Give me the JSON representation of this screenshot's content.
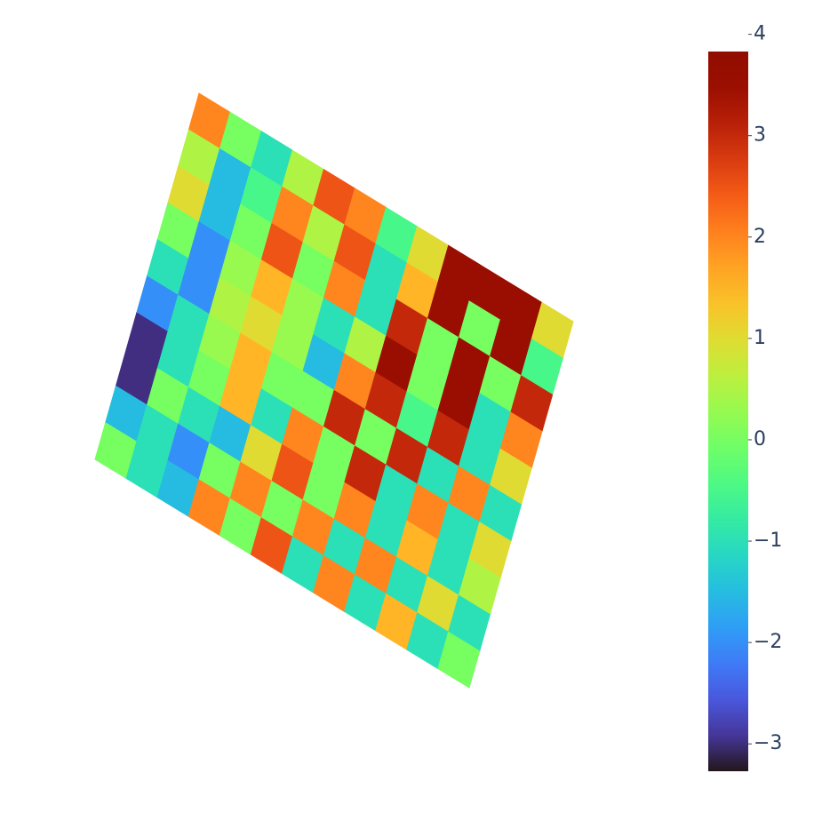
{
  "chart_data": {
    "type": "heatmap",
    "colorscale": "Turbo",
    "zlim": [
      -3.27,
      3.83
    ],
    "zticks": [
      4,
      3,
      2,
      1,
      0,
      {
        "value": -1,
        "label": "−1"
      },
      {
        "value": -2,
        "label": "−2"
      },
      {
        "value": -3,
        "label": "−3"
      }
    ],
    "z": [
      [
        2,
        0,
        -1,
        0.5,
        2.5,
        2,
        -0.5,
        1,
        3.5,
        3.5,
        3.5,
        1
      ],
      [
        0.5,
        -1.5,
        -0.5,
        2,
        0.5,
        2.5,
        -1,
        1.5,
        3.5,
        0,
        3.5,
        -0.5
      ],
      [
        1,
        -1.5,
        0,
        2.5,
        0,
        2,
        -1,
        3,
        0,
        3.5,
        0,
        3
      ],
      [
        0,
        -2,
        0.3,
        1.5,
        0.3,
        -1,
        0.5,
        3.5,
        0,
        3.5,
        -1,
        2
      ],
      [
        -1,
        -2,
        0.5,
        1,
        0.3,
        -1.5,
        2,
        3,
        -0.5,
        3,
        -1,
        1
      ],
      [
        -2,
        -1,
        0.3,
        1.5,
        0,
        0,
        3,
        0,
        3,
        -1,
        2,
        -1
      ],
      [
        -3,
        -1,
        0,
        1.5,
        -1,
        2,
        0,
        3,
        -1,
        2,
        -1,
        1
      ],
      [
        -3,
        0,
        -1,
        -1.5,
        1,
        2.5,
        0,
        2,
        -1,
        1.5,
        -1,
        0.5
      ],
      [
        -1.5,
        -1,
        -2,
        0,
        2,
        0,
        2,
        -1,
        2,
        -1,
        1,
        -1
      ],
      [
        0,
        -1,
        -1.5,
        2,
        0,
        2.5,
        -1,
        2,
        -1,
        1.5,
        -1,
        0
      ]
    ]
  }
}
